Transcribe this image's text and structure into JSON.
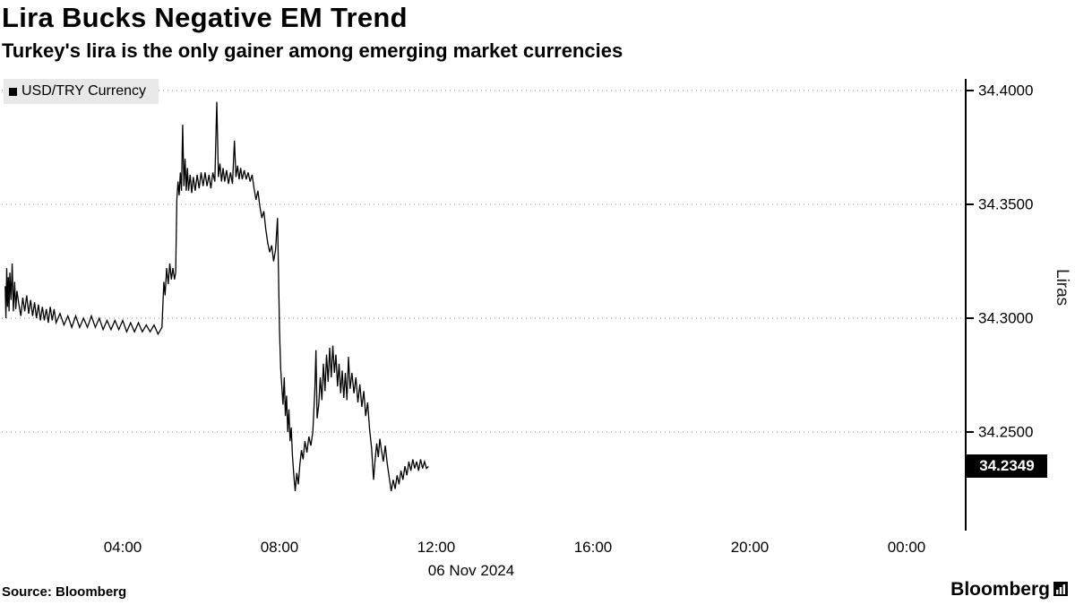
{
  "header": {
    "title": "Lira Bucks Negative EM Trend",
    "subtitle": "Turkey's lira is the only gainer among emerging market currencies"
  },
  "legend": {
    "position": "top-left",
    "items": [
      {
        "label": "USD/TRY Currency",
        "marker_color": "#000000"
      }
    ]
  },
  "footer": {
    "source": "Source: Bloomberg",
    "brand": "Bloomberg"
  },
  "chart_data": {
    "type": "line",
    "title": "Lira Bucks Negative EM Trend",
    "subtitle": "Turkey's lira is the only gainer among emerging market currencies",
    "grid": "dotted-horizontal",
    "x_axis": {
      "unit": "time of day",
      "date_label": "06 Nov 2024",
      "range_hours": [
        0.98,
        25.5
      ],
      "ticks": [
        {
          "hour": 4,
          "label": "04:00"
        },
        {
          "hour": 8,
          "label": "08:00"
        },
        {
          "hour": 12,
          "label": "12:00"
        },
        {
          "hour": 16,
          "label": "16:00"
        },
        {
          "hour": 20,
          "label": "20:00"
        },
        {
          "hour": 24,
          "label": "00:00"
        }
      ]
    },
    "y_axis": {
      "label": "Liras",
      "side": "right",
      "range": [
        34.205,
        34.405
      ],
      "ticks": [
        34.4,
        34.35,
        34.3,
        34.25
      ],
      "tick_labels": [
        "34.4000",
        "34.3500",
        "34.3000",
        "34.2500"
      ]
    },
    "last_price": 34.2349,
    "last_price_label": "34.2349",
    "series": [
      {
        "name": "USD/TRY Currency",
        "color": "#000000",
        "points": [
          [
            1.0,
            34.314
          ],
          [
            1.02,
            34.3
          ],
          [
            1.04,
            34.322
          ],
          [
            1.06,
            34.305
          ],
          [
            1.08,
            34.318
          ],
          [
            1.1,
            34.303
          ],
          [
            1.12,
            34.32
          ],
          [
            1.15,
            34.308
          ],
          [
            1.18,
            34.324
          ],
          [
            1.21,
            34.303
          ],
          [
            1.24,
            34.316
          ],
          [
            1.27,
            34.304
          ],
          [
            1.3,
            34.312
          ],
          [
            1.35,
            34.306
          ],
          [
            1.4,
            34.301
          ],
          [
            1.45,
            34.309
          ],
          [
            1.5,
            34.303
          ],
          [
            1.55,
            34.31
          ],
          [
            1.6,
            34.302
          ],
          [
            1.65,
            34.308
          ],
          [
            1.7,
            34.301
          ],
          [
            1.75,
            34.307
          ],
          [
            1.8,
            34.3
          ],
          [
            1.85,
            34.306
          ],
          [
            1.9,
            34.299
          ],
          [
            1.95,
            34.305
          ],
          [
            2.0,
            34.299
          ],
          [
            2.05,
            34.304
          ],
          [
            2.1,
            34.298
          ],
          [
            2.15,
            34.305
          ],
          [
            2.2,
            34.299
          ],
          [
            2.25,
            34.304
          ],
          [
            2.3,
            34.298
          ],
          [
            2.4,
            34.302
          ],
          [
            2.5,
            34.297
          ],
          [
            2.6,
            34.301
          ],
          [
            2.7,
            34.296
          ],
          [
            2.8,
            34.301
          ],
          [
            2.9,
            34.296
          ],
          [
            3.0,
            34.3
          ],
          [
            3.1,
            34.296
          ],
          [
            3.2,
            34.301
          ],
          [
            3.3,
            34.296
          ],
          [
            3.4,
            34.3
          ],
          [
            3.5,
            34.295
          ],
          [
            3.6,
            34.299
          ],
          [
            3.7,
            34.295
          ],
          [
            3.8,
            34.299
          ],
          [
            3.9,
            34.295
          ],
          [
            4.0,
            34.299
          ],
          [
            4.1,
            34.294
          ],
          [
            4.2,
            34.298
          ],
          [
            4.3,
            34.294
          ],
          [
            4.4,
            34.298
          ],
          [
            4.5,
            34.294
          ],
          [
            4.6,
            34.297
          ],
          [
            4.7,
            34.294
          ],
          [
            4.8,
            34.297
          ],
          [
            4.9,
            34.293
          ],
          [
            5.0,
            34.296
          ],
          [
            5.05,
            34.316
          ],
          [
            5.08,
            34.31
          ],
          [
            5.12,
            34.322
          ],
          [
            5.16,
            34.315
          ],
          [
            5.2,
            34.324
          ],
          [
            5.24,
            34.317
          ],
          [
            5.28,
            34.322
          ],
          [
            5.32,
            34.317
          ],
          [
            5.35,
            34.32
          ],
          [
            5.38,
            34.352
          ],
          [
            5.41,
            34.36
          ],
          [
            5.44,
            34.354
          ],
          [
            5.47,
            34.364
          ],
          [
            5.5,
            34.356
          ],
          [
            5.53,
            34.385
          ],
          [
            5.56,
            34.358
          ],
          [
            5.59,
            34.37
          ],
          [
            5.62,
            34.356
          ],
          [
            5.65,
            34.366
          ],
          [
            5.68,
            34.356
          ],
          [
            5.72,
            34.363
          ],
          [
            5.76,
            34.355
          ],
          [
            5.8,
            34.362
          ],
          [
            5.85,
            34.356
          ],
          [
            5.9,
            34.363
          ],
          [
            5.95,
            34.357
          ],
          [
            6.0,
            34.364
          ],
          [
            6.05,
            34.358
          ],
          [
            6.1,
            34.364
          ],
          [
            6.15,
            34.358
          ],
          [
            6.2,
            34.363
          ],
          [
            6.25,
            34.357
          ],
          [
            6.3,
            34.364
          ],
          [
            6.35,
            34.36
          ],
          [
            6.4,
            34.395
          ],
          [
            6.44,
            34.362
          ],
          [
            6.48,
            34.368
          ],
          [
            6.52,
            34.36
          ],
          [
            6.56,
            34.366
          ],
          [
            6.6,
            34.36
          ],
          [
            6.65,
            34.365
          ],
          [
            6.7,
            34.359
          ],
          [
            6.75,
            34.364
          ],
          [
            6.8,
            34.359
          ],
          [
            6.85,
            34.378
          ],
          [
            6.89,
            34.362
          ],
          [
            6.93,
            34.367
          ],
          [
            6.97,
            34.361
          ],
          [
            7.01,
            34.366
          ],
          [
            7.05,
            34.361
          ],
          [
            7.1,
            34.365
          ],
          [
            7.15,
            34.361
          ],
          [
            7.2,
            34.364
          ],
          [
            7.25,
            34.36
          ],
          [
            7.3,
            34.363
          ],
          [
            7.35,
            34.357
          ],
          [
            7.4,
            34.352
          ],
          [
            7.45,
            34.356
          ],
          [
            7.5,
            34.349
          ],
          [
            7.55,
            34.344
          ],
          [
            7.6,
            34.347
          ],
          [
            7.65,
            34.339
          ],
          [
            7.7,
            34.333
          ],
          [
            7.75,
            34.329
          ],
          [
            7.8,
            34.332
          ],
          [
            7.85,
            34.325
          ],
          [
            7.9,
            34.33
          ],
          [
            7.95,
            34.344
          ],
          [
            8.0,
            34.295
          ],
          [
            8.03,
            34.278
          ],
          [
            8.06,
            34.27
          ],
          [
            8.09,
            34.262
          ],
          [
            8.12,
            34.274
          ],
          [
            8.15,
            34.257
          ],
          [
            8.18,
            34.266
          ],
          [
            8.21,
            34.25
          ],
          [
            8.24,
            34.26
          ],
          [
            8.27,
            34.246
          ],
          [
            8.3,
            34.252
          ],
          [
            8.33,
            34.24
          ],
          [
            8.36,
            34.232
          ],
          [
            8.4,
            34.224
          ],
          [
            8.44,
            34.232
          ],
          [
            8.48,
            34.227
          ],
          [
            8.52,
            34.236
          ],
          [
            8.56,
            34.242
          ],
          [
            8.6,
            34.238
          ],
          [
            8.65,
            34.246
          ],
          [
            8.7,
            34.241
          ],
          [
            8.75,
            34.248
          ],
          [
            8.8,
            34.244
          ],
          [
            8.85,
            34.25
          ],
          [
            8.9,
            34.268
          ],
          [
            8.93,
            34.286
          ],
          [
            8.96,
            34.256
          ],
          [
            9.0,
            34.262
          ],
          [
            9.04,
            34.274
          ],
          [
            9.08,
            34.264
          ],
          [
            9.12,
            34.28
          ],
          [
            9.16,
            34.268
          ],
          [
            9.2,
            34.284
          ],
          [
            9.24,
            34.272
          ],
          [
            9.28,
            34.287
          ],
          [
            9.32,
            34.274
          ],
          [
            9.36,
            34.288
          ],
          [
            9.4,
            34.276
          ],
          [
            9.44,
            34.284
          ],
          [
            9.48,
            34.27
          ],
          [
            9.52,
            34.28
          ],
          [
            9.56,
            34.267
          ],
          [
            9.6,
            34.277
          ],
          [
            9.64,
            34.265
          ],
          [
            9.68,
            34.276
          ],
          [
            9.72,
            34.264
          ],
          [
            9.76,
            34.283
          ],
          [
            9.8,
            34.269
          ],
          [
            9.85,
            34.276
          ],
          [
            9.9,
            34.267
          ],
          [
            9.95,
            34.274
          ],
          [
            10.0,
            34.263
          ],
          [
            10.05,
            34.271
          ],
          [
            10.1,
            34.261
          ],
          [
            10.15,
            34.268
          ],
          [
            10.2,
            34.257
          ],
          [
            10.25,
            34.263
          ],
          [
            10.3,
            34.251
          ],
          [
            10.35,
            34.243
          ],
          [
            10.4,
            34.229
          ],
          [
            10.44,
            34.238
          ],
          [
            10.48,
            34.245
          ],
          [
            10.52,
            34.239
          ],
          [
            10.56,
            34.247
          ],
          [
            10.6,
            34.242
          ],
          [
            10.65,
            34.237
          ],
          [
            10.7,
            34.244
          ],
          [
            10.75,
            34.236
          ],
          [
            10.8,
            34.23
          ],
          [
            10.85,
            34.224
          ],
          [
            10.9,
            34.229
          ],
          [
            10.95,
            34.225
          ],
          [
            11.0,
            34.231
          ],
          [
            11.05,
            34.227
          ],
          [
            11.1,
            34.233
          ],
          [
            11.15,
            34.229
          ],
          [
            11.2,
            34.235
          ],
          [
            11.25,
            34.231
          ],
          [
            11.3,
            34.237
          ],
          [
            11.35,
            34.233
          ],
          [
            11.4,
            34.238
          ],
          [
            11.45,
            34.234
          ],
          [
            11.5,
            34.237
          ],
          [
            11.55,
            34.233
          ],
          [
            11.6,
            34.238
          ],
          [
            11.65,
            34.234
          ],
          [
            11.7,
            34.237
          ],
          [
            11.75,
            34.234
          ],
          [
            11.8,
            34.2349
          ]
        ]
      }
    ]
  }
}
